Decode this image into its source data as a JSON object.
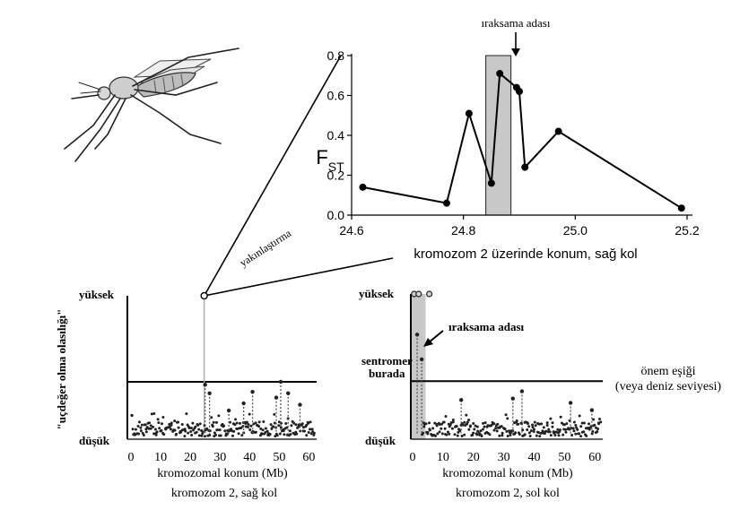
{
  "chart_data": [
    {
      "type": "line",
      "panel": "zoom",
      "title": "",
      "ylabel": "F",
      "ylabel_sub": "ST",
      "xlabel": "kromozom 2 üzerinde konum, sağ kol",
      "xlim": [
        24.6,
        25.2
      ],
      "ylim": [
        0.0,
        0.8
      ],
      "x_ticks": [
        24.6,
        24.8,
        25.0,
        25.2
      ],
      "x_tick_labels": [
        "24.6",
        "24.8",
        "25.0",
        "25.2"
      ],
      "y_ticks": [
        0.0,
        0.2,
        0.4,
        0.6,
        0.8
      ],
      "y_tick_labels": [
        "0.0",
        "0.2",
        "0.4",
        "0.6",
        "0.8"
      ],
      "grid": false,
      "series": [
        {
          "x": [
            24.62,
            24.77,
            24.81,
            24.85,
            24.865,
            24.895,
            24.9,
            24.91,
            24.97,
            25.19
          ],
          "y": [
            0.14,
            0.06,
            0.51,
            0.16,
            0.71,
            0.64,
            0.62,
            0.24,
            0.42,
            0.035
          ]
        }
      ],
      "highlight": {
        "x_range": [
          24.84,
          24.885
        ],
        "color": "#c8c8c8"
      },
      "annotation": "ıraksama adası"
    },
    {
      "type": "scatter",
      "panel": "right-arm",
      "xlabel": "kromozomal konum (Mb)",
      "caption": "kromozom 2, sağ kol",
      "ylabel": "\"uçdeğer olma olasılığı\"",
      "y_high_label": "yüksek",
      "y_low_label": "düşük",
      "xlim": [
        0,
        62
      ],
      "x_ticks": [
        0,
        10,
        20,
        30,
        40,
        50,
        60
      ],
      "x_tick_labels": [
        "0",
        "10",
        "20",
        "30",
        "40",
        "50",
        "60"
      ],
      "threshold": 0.4,
      "zoom_point": {
        "x": 24.7,
        "y": 1.0
      },
      "peaks": [
        {
          "x": 25,
          "y": 0.38
        },
        {
          "x": 26.5,
          "y": 0.32
        },
        {
          "x": 33,
          "y": 0.2
        },
        {
          "x": 38,
          "y": 0.25
        },
        {
          "x": 41,
          "y": 0.33
        },
        {
          "x": 49,
          "y": 0.29
        },
        {
          "x": 50.5,
          "y": 0.4
        },
        {
          "x": 53,
          "y": 0.32
        },
        {
          "x": 57,
          "y": 0.24
        }
      ]
    },
    {
      "type": "scatter",
      "panel": "left-arm",
      "xlabel": "kromozomal konum (Mb)",
      "caption": "kromozom 2, sol kol",
      "y_high_label": "yüksek",
      "y_low_label": "düşük",
      "xlim": [
        0,
        62
      ],
      "x_ticks": [
        0,
        10,
        20,
        30,
        40,
        50,
        60
      ],
      "x_tick_labels": [
        "0",
        "10",
        "20",
        "30",
        "40",
        "50",
        "60"
      ],
      "threshold": 0.4,
      "top_points": [
        {
          "x": 0.5,
          "y": 1.0
        },
        {
          "x": 2.0,
          "y": 1.0
        },
        {
          "x": 5.5,
          "y": 1.0
        }
      ],
      "peaks": [
        {
          "x": 1.5,
          "y": 0.72
        },
        {
          "x": 3.0,
          "y": 0.55
        },
        {
          "x": 16,
          "y": 0.27
        },
        {
          "x": 33,
          "y": 0.28
        },
        {
          "x": 36,
          "y": 0.33
        },
        {
          "x": 52,
          "y": 0.25
        },
        {
          "x": 59,
          "y": 0.2
        }
      ],
      "highlight": {
        "x_range": [
          0,
          2.5
        ],
        "color": "#c8c8c8"
      },
      "annotation": "ıraksama adası",
      "centromere_label": [
        "sentromer",
        "burada"
      ],
      "threshold_label": [
        "önem eşiği",
        "(veya deniz seviyesi)"
      ]
    }
  ],
  "zoom_label": "yakınlaştırma",
  "mosquito_icon": "mosquito-icon"
}
